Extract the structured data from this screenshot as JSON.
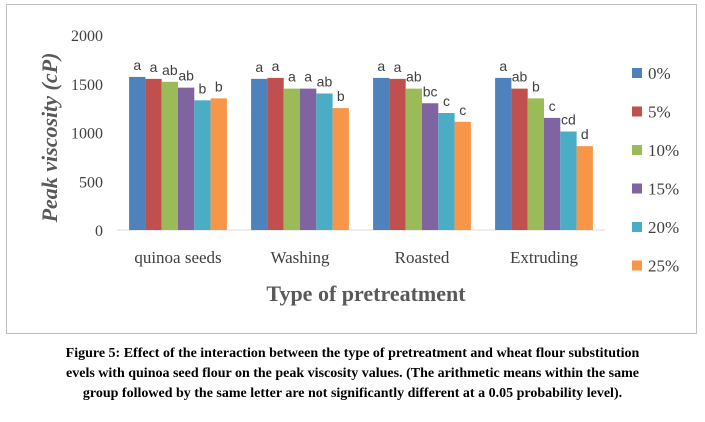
{
  "chart_data": {
    "type": "bar",
    "ylabel": "Peak viscosity (cP)",
    "xlabel": "Type of pretreatment",
    "ylim": [
      0,
      2000
    ],
    "yticks": [
      0,
      500,
      1000,
      1500,
      2000
    ],
    "grid": false,
    "legend_position": "right",
    "categories": [
      "quinoa seeds",
      "Washing",
      "Roasted",
      "Extruding"
    ],
    "series": [
      {
        "name": "0%",
        "color": "#4f81bd",
        "values": [
          1570,
          1550,
          1560,
          1560
        ],
        "labels": [
          "a",
          "a",
          "a",
          "a"
        ]
      },
      {
        "name": "5%",
        "color": "#c0504d",
        "values": [
          1550,
          1560,
          1550,
          1450
        ],
        "labels": [
          "a",
          "a",
          "a",
          "ab"
        ]
      },
      {
        "name": "10%",
        "color": "#9bbb59",
        "values": [
          1520,
          1450,
          1450,
          1350
        ],
        "labels": [
          "ab",
          "a",
          "ab",
          "b"
        ]
      },
      {
        "name": "15%",
        "color": "#8064a2",
        "values": [
          1460,
          1450,
          1300,
          1150
        ],
        "labels": [
          "ab",
          "a",
          "bc",
          "c"
        ]
      },
      {
        "name": "20%",
        "color": "#4bacc6",
        "values": [
          1330,
          1400,
          1200,
          1010
        ],
        "labels": [
          "b",
          "ab",
          "c",
          "cd"
        ]
      },
      {
        "name": "25%",
        "color": "#f79646",
        "values": [
          1350,
          1250,
          1110,
          860
        ],
        "labels": [
          "b",
          "b",
          "c",
          "d"
        ]
      }
    ]
  },
  "caption": {
    "line1": "Figure 5: Effect of the interaction between the type of pretreatment and wheat flour substitution",
    "line2": "evels with quinoa seed flour on the peak viscosity values. (The arithmetic means within the same",
    "line3": "group followed by the same letter are not significantly different at a 0.05 probability level)."
  }
}
